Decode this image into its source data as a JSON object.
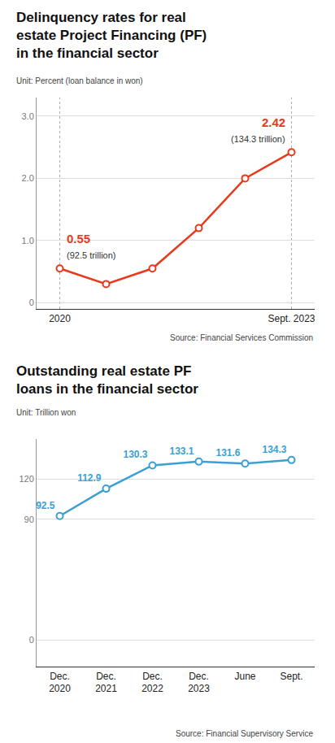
{
  "chart_data": [
    {
      "type": "line",
      "title": "Delinquency rates for real\nestate Project Financing (PF)\nin the financial sector",
      "subtitle": "Unit: Percent (loan balance in won)",
      "categories": [
        "2020",
        null,
        null,
        null,
        null,
        "Sept. 2023"
      ],
      "values": [
        0.55,
        0.3,
        0.55,
        1.2,
        2.0,
        2.42
      ],
      "color": "#e8391c",
      "marker": "circle",
      "ylim": [
        -0.1,
        3.3
      ],
      "yticks": [
        0,
        {
          "value": 1,
          "label": "1.0"
        },
        {
          "value": 2,
          "label": "2.0"
        },
        {
          "value": 3,
          "label": "3.0"
        }
      ],
      "grid": true,
      "annotations": [
        "0.55",
        "(92.5 trillion)",
        "2.42",
        "(134.3 trillion)",
        "Source: Financial Services Commission"
      ]
    },
    {
      "type": "line",
      "title": "Outstanding real estate PF\nloans in the financial sector",
      "subtitle": "Unit: Trillion won",
      "categories": [
        "Dec.\n2020",
        "Dec.\n2021",
        "Dec.\n2022",
        "Dec.\n2023",
        "June",
        "Sept."
      ],
      "values": [
        92.5,
        112.9,
        130.3,
        133.1,
        131.6,
        134.3
      ],
      "color": "#3b9fd4",
      "marker": "circle",
      "data_labels": true,
      "ylim": [
        -20,
        150
      ],
      "yticks": [
        0,
        90,
        120
      ],
      "grid": true,
      "annotations": [
        "Source: Financial Supervisory Service"
      ]
    }
  ]
}
